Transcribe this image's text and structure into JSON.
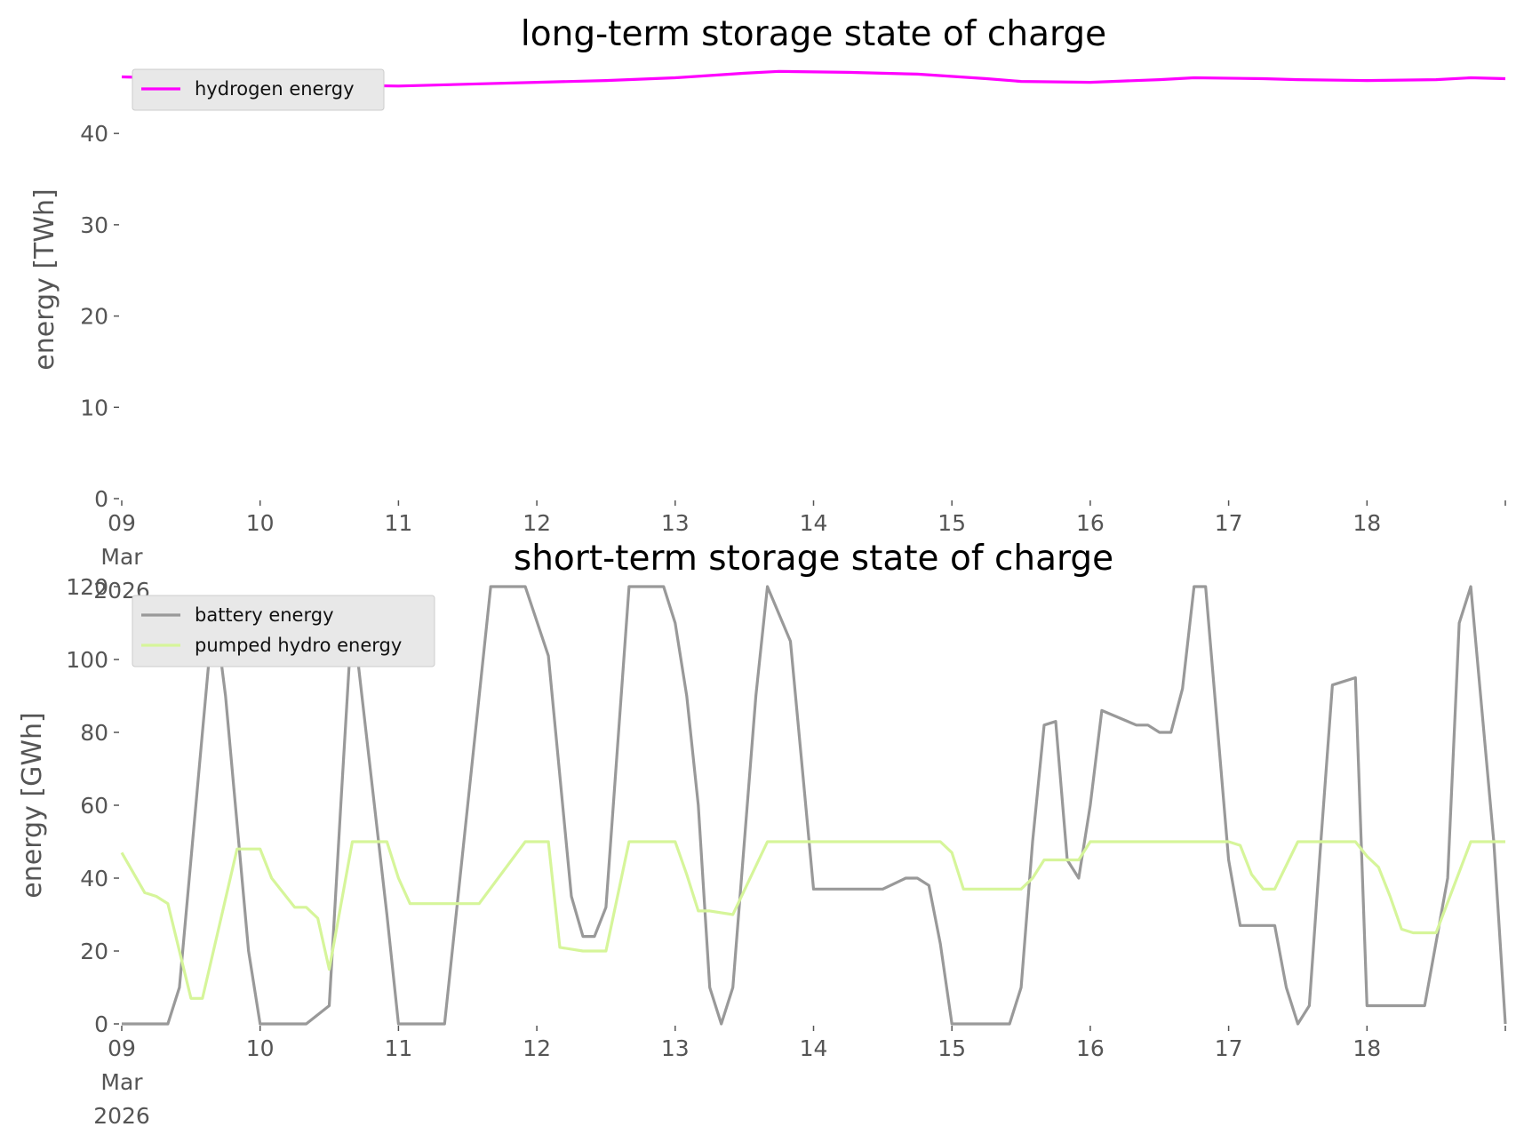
{
  "chart_data": [
    {
      "type": "line",
      "title": "long-term storage state of charge",
      "ylabel": "energy [TWh]",
      "xlabel": "",
      "xlim": [
        "2026-03-09",
        "2026-03-19"
      ],
      "ylim": [
        0,
        48
      ],
      "yticks": [
        0,
        10,
        20,
        30,
        40
      ],
      "xticks": [
        {
          "x": "2026-03-09",
          "label": [
            "09",
            "Mar",
            "2026"
          ]
        },
        {
          "x": "2026-03-10",
          "label": [
            "10"
          ]
        },
        {
          "x": "2026-03-11",
          "label": [
            "11"
          ]
        },
        {
          "x": "2026-03-12",
          "label": [
            "12"
          ]
        },
        {
          "x": "2026-03-13",
          "label": [
            "13"
          ]
        },
        {
          "x": "2026-03-14",
          "label": [
            "14"
          ]
        },
        {
          "x": "2026-03-15",
          "label": [
            "15"
          ]
        },
        {
          "x": "2026-03-16",
          "label": [
            "16"
          ]
        },
        {
          "x": "2026-03-17",
          "label": [
            "17"
          ]
        },
        {
          "x": "2026-03-18",
          "label": [
            "18"
          ]
        }
      ],
      "grid": false,
      "legend": "upper-left",
      "series": [
        {
          "name": "hydrogen energy",
          "color": "#ff00ff",
          "x": [
            "2026-03-09T00:00",
            "2026-03-09T12:00",
            "2026-03-10T00:00",
            "2026-03-10T12:00",
            "2026-03-11T00:00",
            "2026-03-11T12:00",
            "2026-03-12T00:00",
            "2026-03-12T12:00",
            "2026-03-13T00:00",
            "2026-03-13T12:00",
            "2026-03-13T18:00",
            "2026-03-14T06:00",
            "2026-03-14T18:00",
            "2026-03-15T06:00",
            "2026-03-15T12:00",
            "2026-03-16T00:00",
            "2026-03-16T12:00",
            "2026-03-16T18:00",
            "2026-03-17T06:00",
            "2026-03-17T12:00",
            "2026-03-18T00:00",
            "2026-03-18T12:00",
            "2026-03-18T18:00",
            "2026-03-19T00:00"
          ],
          "y": [
            46.2,
            46.0,
            45.8,
            45.3,
            45.2,
            45.4,
            45.6,
            45.8,
            46.1,
            46.6,
            46.8,
            46.7,
            46.5,
            46.0,
            45.7,
            45.6,
            45.9,
            46.1,
            46.0,
            45.9,
            45.8,
            45.9,
            46.1,
            46.0
          ]
        }
      ]
    },
    {
      "type": "line",
      "title": "short-term storage state of charge",
      "ylabel": "energy [GWh]",
      "xlabel": "",
      "xlim": [
        "2026-03-09",
        "2026-03-19"
      ],
      "ylim": [
        0,
        120
      ],
      "yticks": [
        0,
        20,
        40,
        60,
        80,
        100,
        120
      ],
      "xticks": [
        {
          "x": "2026-03-09",
          "label": [
            "09",
            "Mar",
            "2026"
          ]
        },
        {
          "x": "2026-03-10",
          "label": [
            "10"
          ]
        },
        {
          "x": "2026-03-11",
          "label": [
            "11"
          ]
        },
        {
          "x": "2026-03-12",
          "label": [
            "12"
          ]
        },
        {
          "x": "2026-03-13",
          "label": [
            "13"
          ]
        },
        {
          "x": "2026-03-14",
          "label": [
            "14"
          ]
        },
        {
          "x": "2026-03-15",
          "label": [
            "15"
          ]
        },
        {
          "x": "2026-03-16",
          "label": [
            "16"
          ]
        },
        {
          "x": "2026-03-17",
          "label": [
            "17"
          ]
        },
        {
          "x": "2026-03-18",
          "label": [
            "18"
          ]
        }
      ],
      "grid": false,
      "legend": "upper-left",
      "series": [
        {
          "name": "battery energy",
          "color": "#999999",
          "x": [
            "2026-03-09T00:00",
            "2026-03-09T08:00",
            "2026-03-09T10:00",
            "2026-03-09T14:00",
            "2026-03-09T16:00",
            "2026-03-09T18:00",
            "2026-03-09T22:00",
            "2026-03-10T00:00",
            "2026-03-10T08:00",
            "2026-03-10T12:00",
            "2026-03-10T14:00",
            "2026-03-10T16:00",
            "2026-03-10T22:00",
            "2026-03-11T00:00",
            "2026-03-11T08:00",
            "2026-03-11T12:00",
            "2026-03-11T16:00",
            "2026-03-11T22:00",
            "2026-03-12T02:00",
            "2026-03-12T06:00",
            "2026-03-12T08:00",
            "2026-03-12T10:00",
            "2026-03-12T12:00",
            "2026-03-12T16:00",
            "2026-03-12T20:00",
            "2026-03-12T22:00",
            "2026-03-13T00:00",
            "2026-03-13T02:00",
            "2026-03-13T04:00",
            "2026-03-13T06:00",
            "2026-03-13T08:00",
            "2026-03-13T10:00",
            "2026-03-13T14:00",
            "2026-03-13T16:00",
            "2026-03-13T20:00",
            "2026-03-14T00:00",
            "2026-03-14T10:00",
            "2026-03-14T12:00",
            "2026-03-14T16:00",
            "2026-03-14T18:00",
            "2026-03-14T20:00",
            "2026-03-14T22:00",
            "2026-03-15T00:00",
            "2026-03-15T10:00",
            "2026-03-15T12:00",
            "2026-03-15T14:00",
            "2026-03-15T16:00",
            "2026-03-15T18:00",
            "2026-03-15T20:00",
            "2026-03-15T22:00",
            "2026-03-16T00:00",
            "2026-03-16T02:00",
            "2026-03-16T08:00",
            "2026-03-16T10:00",
            "2026-03-16T12:00",
            "2026-03-16T14:00",
            "2026-03-16T16:00",
            "2026-03-16T18:00",
            "2026-03-16T20:00",
            "2026-03-17T00:00",
            "2026-03-17T02:00",
            "2026-03-17T06:00",
            "2026-03-17T08:00",
            "2026-03-17T10:00",
            "2026-03-17T12:00",
            "2026-03-17T14:00",
            "2026-03-17T16:00",
            "2026-03-17T18:00",
            "2026-03-17T22:00",
            "2026-03-18T00:00",
            "2026-03-18T08:00",
            "2026-03-18T10:00",
            "2026-03-18T14:00",
            "2026-03-18T16:00",
            "2026-03-18T18:00",
            "2026-03-18T22:00",
            "2026-03-19T00:00"
          ],
          "y": [
            0,
            0,
            10,
            80,
            115,
            90,
            20,
            0,
            0,
            5,
            60,
            113,
            30,
            0,
            0,
            60,
            120,
            120,
            101,
            35,
            24,
            24,
            32,
            120,
            120,
            120,
            110,
            90,
            60,
            10,
            0,
            10,
            90,
            120,
            105,
            37,
            37,
            37,
            40,
            40,
            38,
            22,
            0,
            0,
            10,
            50,
            82,
            83,
            45,
            40,
            60,
            86,
            82,
            82,
            80,
            80,
            92,
            120,
            120,
            45,
            27,
            27,
            27,
            10,
            0,
            5,
            50,
            93,
            95,
            5,
            5,
            5,
            40,
            110,
            120,
            50,
            0
          ]
        },
        {
          "name": "pumped hydro energy",
          "color": "#d6f59a",
          "x": [
            "2026-03-09T00:00",
            "2026-03-09T04:00",
            "2026-03-09T06:00",
            "2026-03-09T08:00",
            "2026-03-09T12:00",
            "2026-03-09T14:00",
            "2026-03-09T20:00",
            "2026-03-10T00:00",
            "2026-03-10T02:00",
            "2026-03-10T06:00",
            "2026-03-10T08:00",
            "2026-03-10T10:00",
            "2026-03-10T12:00",
            "2026-03-10T16:00",
            "2026-03-10T22:00",
            "2026-03-11T00:00",
            "2026-03-11T02:00",
            "2026-03-11T08:00",
            "2026-03-11T10:00",
            "2026-03-11T14:00",
            "2026-03-11T22:00",
            "2026-03-12T02:00",
            "2026-03-12T04:00",
            "2026-03-12T08:00",
            "2026-03-12T10:00",
            "2026-03-12T12:00",
            "2026-03-12T16:00",
            "2026-03-12T22:00",
            "2026-03-13T00:00",
            "2026-03-13T02:00",
            "2026-03-13T04:00",
            "2026-03-13T06:00",
            "2026-03-13T10:00",
            "2026-03-13T16:00",
            "2026-03-13T22:00",
            "2026-03-14T22:00",
            "2026-03-15T00:00",
            "2026-03-15T02:00",
            "2026-03-15T08:00",
            "2026-03-15T12:00",
            "2026-03-15T14:00",
            "2026-03-15T16:00",
            "2026-03-15T22:00",
            "2026-03-16T00:00",
            "2026-03-16T12:00",
            "2026-03-16T22:00",
            "2026-03-17T00:00",
            "2026-03-17T02:00",
            "2026-03-17T04:00",
            "2026-03-17T06:00",
            "2026-03-17T08:00",
            "2026-03-17T12:00",
            "2026-03-17T16:00",
            "2026-03-17T22:00",
            "2026-03-18T00:00",
            "2026-03-18T02:00",
            "2026-03-18T04:00",
            "2026-03-18T06:00",
            "2026-03-18T08:00",
            "2026-03-18T12:00",
            "2026-03-18T18:00",
            "2026-03-19T00:00"
          ],
          "y": [
            47,
            36,
            35,
            33,
            7,
            7,
            48,
            48,
            40,
            32,
            32,
            29,
            15,
            50,
            50,
            40,
            33,
            33,
            33,
            33,
            50,
            50,
            21,
            20,
            20,
            20,
            50,
            50,
            50,
            41,
            31,
            31,
            30,
            50,
            50,
            50,
            47,
            37,
            37,
            37,
            40,
            45,
            45,
            50,
            50,
            50,
            50,
            49,
            41,
            37,
            37,
            50,
            50,
            50,
            46,
            43,
            35,
            26,
            25,
            25,
            50,
            50
          ]
        }
      ]
    }
  ]
}
